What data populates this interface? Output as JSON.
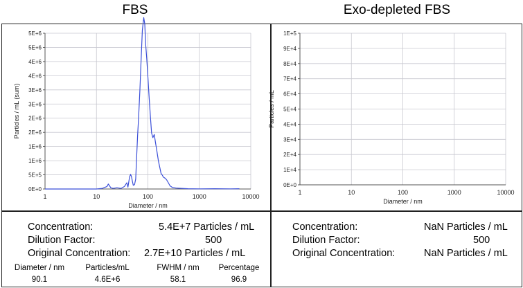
{
  "panels": [
    {
      "title": "FBS",
      "stats": {
        "concentration_label": "Concentration:",
        "concentration_value": "5.4E+7 Particles / mL",
        "dilution_label": "Dilution Factor:",
        "dilution_value": "500",
        "original_label": "Original Concentration:",
        "original_value": "2.7E+10 Particles / mL",
        "table_headers": [
          "Diameter / nm",
          "Particles/mL",
          "FWHM / nm",
          "Percentage"
        ],
        "table_values": [
          "90.1",
          "4.6E+6",
          "58.1",
          "96.9"
        ]
      }
    },
    {
      "title": "Exo-depleted FBS",
      "stats": {
        "concentration_label": "Concentration:",
        "concentration_value": "NaN Particles / mL",
        "dilution_label": "Dilution Factor:",
        "dilution_value": "500",
        "original_label": "Original Concentration:",
        "original_value": "NaN Particles / mL"
      }
    }
  ],
  "chart_data": [
    {
      "type": "line",
      "xlabel": "Diameter / nm",
      "ylabel": "Particles / mL (sum)",
      "xscale": "log",
      "xlim": [
        1,
        10000
      ],
      "ylim": [
        0,
        5000000
      ],
      "xticks": [
        "1",
        "10",
        "100",
        "1000",
        "10000"
      ],
      "yticks": [
        "0E+0",
        "5E+5",
        "1E+6",
        "1E+6",
        "2E+6",
        "2E+6",
        "3E+6",
        "3E+6",
        "4E+6",
        "4E+6",
        "5E+6",
        "5E+6"
      ],
      "grid": true,
      "line_color": "#3b4fd8",
      "x": [
        1,
        3,
        6,
        10,
        13,
        16,
        17,
        18,
        19,
        21,
        25,
        30,
        35,
        39,
        41,
        44,
        46,
        48,
        50,
        52,
        55,
        58,
        60,
        63,
        66,
        70,
        74,
        78,
        83,
        87,
        90,
        95,
        100,
        106,
        112,
        118,
        125,
        133,
        140,
        150,
        160,
        170,
        180,
        190,
        200,
        215,
        230,
        250,
        270,
        300,
        350,
        450,
        600,
        1000,
        2000,
        4000,
        6000
      ],
      "y": [
        0,
        0,
        0,
        0,
        20000,
        80000,
        160000,
        100000,
        40000,
        20000,
        40000,
        20000,
        80000,
        200000,
        60000,
        380000,
        470000,
        400000,
        250000,
        120000,
        140000,
        320000,
        900000,
        1700000,
        2300000,
        3200000,
        4200000,
        5100000,
        5500000,
        5300000,
        4700000,
        4200000,
        3600000,
        2900000,
        2300000,
        1800000,
        1650000,
        1750000,
        1500000,
        1200000,
        900000,
        700000,
        500000,
        450000,
        380000,
        350000,
        300000,
        200000,
        100000,
        50000,
        30000,
        20000,
        10000,
        5000,
        10000,
        5000,
        10000
      ]
    },
    {
      "type": "line",
      "xlabel": "Diameter / nm",
      "ylabel": "Particles / mL",
      "xscale": "log",
      "xlim": [
        1,
        10000
      ],
      "ylim": [
        0,
        100000
      ],
      "xticks": [
        "1",
        "10",
        "100",
        "1000",
        "10000"
      ],
      "yticks": [
        "0E+0",
        "1E+4",
        "2E+4",
        "3E+4",
        "4E+4",
        "5E+4",
        "6E+4",
        "7E+4",
        "8E+4",
        "9E+4",
        "1E+5"
      ],
      "grid": true,
      "x": [],
      "y": []
    }
  ]
}
